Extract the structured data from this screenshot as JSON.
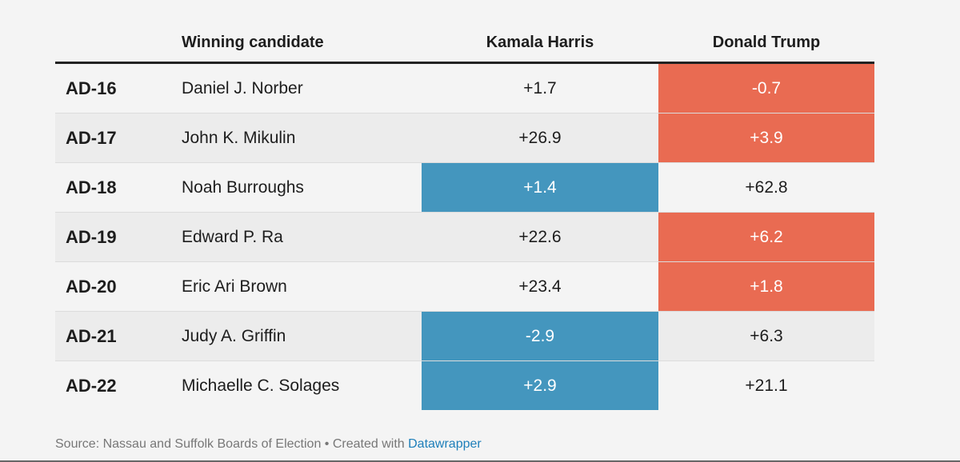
{
  "table": {
    "headers": [
      "",
      "Winning candidate",
      "Kamala Harris",
      "Donald Trump"
    ],
    "rows": [
      {
        "district": "AD-16",
        "candidate": "Daniel J. Norber",
        "harris": "+1.7",
        "trump": "-0.7",
        "highlight": "trump"
      },
      {
        "district": "AD-17",
        "candidate": "John K. Mikulin",
        "harris": "+26.9",
        "trump": "+3.9",
        "highlight": "trump"
      },
      {
        "district": "AD-18",
        "candidate": "Noah Burroughs",
        "harris": "+1.4",
        "trump": "+62.8",
        "highlight": "harris"
      },
      {
        "district": "AD-19",
        "candidate": "Edward P. Ra",
        "harris": "+22.6",
        "trump": "+6.2",
        "highlight": "trump"
      },
      {
        "district": "AD-20",
        "candidate": "Eric Ari Brown",
        "harris": "+23.4",
        "trump": "+1.8",
        "highlight": "trump"
      },
      {
        "district": "AD-21",
        "candidate": "Judy A. Griffin",
        "harris": "-2.9",
        "trump": "+6.3",
        "highlight": "harris"
      },
      {
        "district": "AD-22",
        "candidate": "Michaelle C. Solages",
        "harris": "+2.9",
        "trump": "+21.1",
        "highlight": "harris"
      }
    ]
  },
  "colors": {
    "harris": "#4496be",
    "trump": "#e96b52"
  },
  "footer": {
    "source": "Source: Nassau and Suffolk Boards of Election • Created with ",
    "link": "Datawrapper"
  }
}
